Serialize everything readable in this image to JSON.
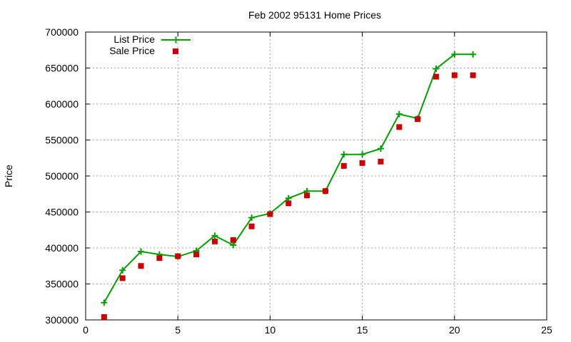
{
  "chart_data": {
    "type": "line",
    "title": "Feb 2002 95131 Home Prices",
    "xlabel": "",
    "ylabel": "Price",
    "xlim": [
      0,
      25
    ],
    "ylim": [
      300000,
      700000
    ],
    "xticks": [
      0,
      5,
      10,
      15,
      20,
      25
    ],
    "yticks": [
      300000,
      350000,
      400000,
      450000,
      500000,
      550000,
      600000,
      650000,
      700000
    ],
    "grid": true,
    "legend_position": "top-left",
    "x": [
      1,
      2,
      3,
      4,
      5,
      6,
      7,
      8,
      9,
      10,
      11,
      12,
      13,
      14,
      15,
      16,
      17,
      18,
      19,
      20,
      21
    ],
    "series": [
      {
        "name": "List Price",
        "style": "linespoints",
        "marker": "plus",
        "color": "#00a000",
        "values": [
          324000,
          369000,
          395000,
          391000,
          388000,
          396000,
          417000,
          404000,
          442000,
          448000,
          469000,
          479000,
          479000,
          530000,
          530000,
          538000,
          586000,
          580000,
          649000,
          669000,
          669000
        ]
      },
      {
        "name": "Sale Price",
        "style": "points",
        "marker": "square",
        "color": "#cc0000",
        "values": [
          304000,
          358000,
          375000,
          386000,
          388500,
          391000,
          409000,
          411000,
          430000,
          447000,
          462000,
          473000,
          479000,
          514000,
          518000,
          520000,
          568000,
          579000,
          638000,
          640000,
          640000
        ]
      }
    ]
  }
}
